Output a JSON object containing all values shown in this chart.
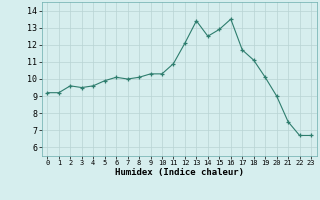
{
  "x": [
    0,
    1,
    2,
    3,
    4,
    5,
    6,
    7,
    8,
    9,
    10,
    11,
    12,
    13,
    14,
    15,
    16,
    17,
    18,
    19,
    20,
    21,
    22,
    23
  ],
  "y": [
    9.2,
    9.2,
    9.6,
    9.5,
    9.6,
    9.9,
    10.1,
    10.0,
    10.1,
    10.3,
    10.3,
    10.9,
    12.1,
    13.4,
    12.5,
    12.9,
    13.5,
    11.7,
    11.1,
    10.1,
    9.0,
    7.5,
    6.7,
    6.7
  ],
  "xlabel": "Humidex (Indice chaleur)",
  "ylim": [
    5.5,
    14.5
  ],
  "xlim": [
    -0.5,
    23.5
  ],
  "yticks": [
    6,
    7,
    8,
    9,
    10,
    11,
    12,
    13,
    14
  ],
  "xticks": [
    0,
    1,
    2,
    3,
    4,
    5,
    6,
    7,
    8,
    9,
    10,
    11,
    12,
    13,
    14,
    15,
    16,
    17,
    18,
    19,
    20,
    21,
    22,
    23
  ],
  "line_color": "#2e7d6e",
  "marker": "+",
  "bg_color": "#d6eeee",
  "grid_color": "#b8d4d4",
  "xlabel_fontsize": 6.5,
  "xtick_fontsize": 5.0,
  "ytick_fontsize": 6.0
}
